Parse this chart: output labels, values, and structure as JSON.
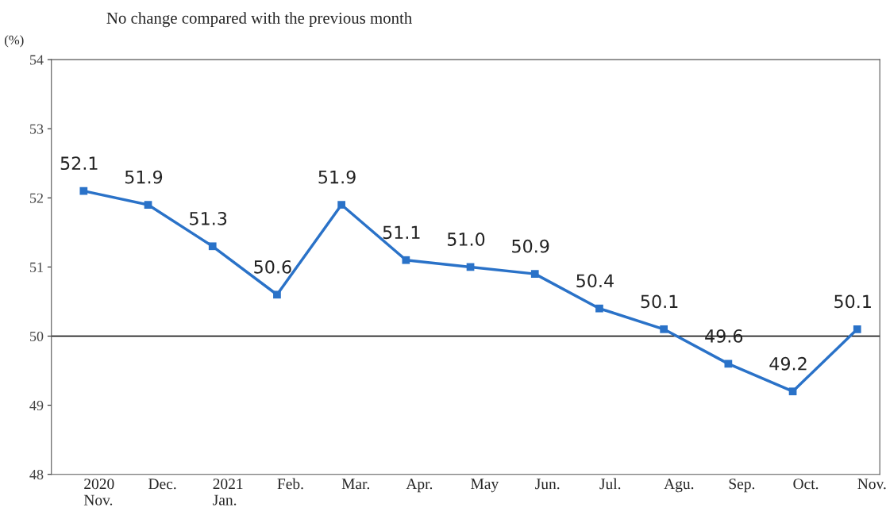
{
  "chart_data": {
    "type": "line",
    "title": "No change compared with the previous month",
    "ylabel": "(%)",
    "categories": [
      "2020\nNov.",
      "Dec.",
      "2021\nJan.",
      "Feb.",
      "Mar.",
      "Apr.",
      "May",
      "Jun.",
      "Jul.",
      "Agu.",
      "Sep.",
      "Oct.",
      "Nov."
    ],
    "series": [
      {
        "color": "#2a72c8",
        "values": [
          52.1,
          51.9,
          51.3,
          50.6,
          51.9,
          51.1,
          51.0,
          50.9,
          50.4,
          50.1,
          49.6,
          49.2,
          50.1
        ]
      }
    ],
    "ylim": [
      48,
      54
    ],
    "yticks": [
      48,
      49,
      50,
      51,
      52,
      53,
      54
    ],
    "ref_lines": [
      {
        "axis": "y",
        "value": 50,
        "color": "#000000"
      }
    ],
    "value_labels": [
      "52.1",
      "51.9",
      "51.3",
      "50.6",
      "51.9",
      "51.1",
      "51.0",
      "50.9",
      "50.4",
      "50.1",
      "49.6",
      "49.2",
      "50.1"
    ],
    "marker": "square",
    "grid": false,
    "legend": false
  }
}
